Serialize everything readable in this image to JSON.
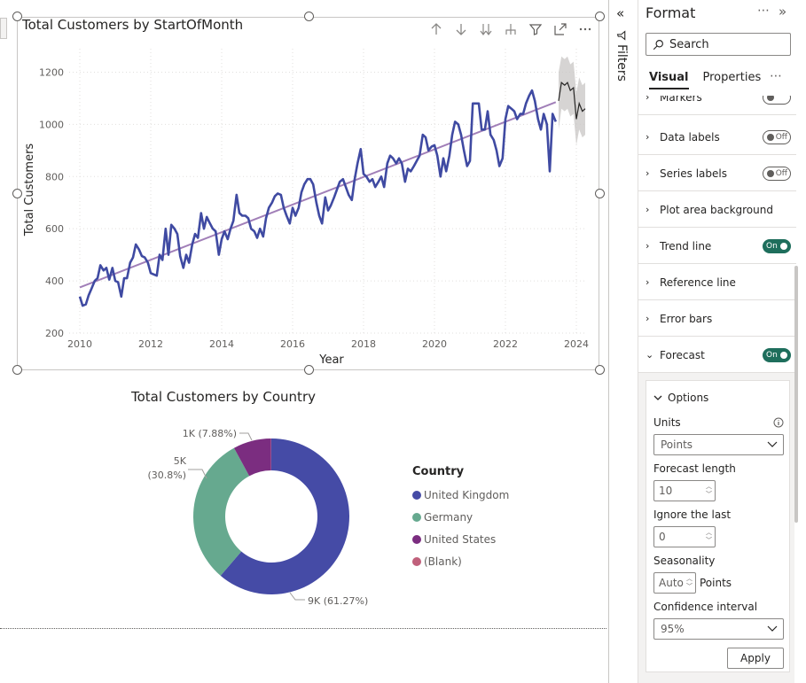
{
  "visual1": {
    "title": "Total Customers by StartOfMonth",
    "toolbar_icons": [
      "arrow-up-icon",
      "arrow-down-icon",
      "double-arrow-down-icon",
      "expand-hierarchy-icon",
      "filter-icon",
      "focus-mode-icon",
      "more-options-icon"
    ]
  },
  "visual2": {
    "title": "Total Customers by Country"
  },
  "chart_data": [
    {
      "type": "line",
      "title": "Total Customers by StartOfMonth",
      "xlabel": "Year",
      "ylabel": "Total Customers",
      "xlim": [
        2009.8,
        2024.3
      ],
      "ylim": [
        200,
        1300
      ],
      "x_ticks": [
        "2010",
        "2012",
        "2014",
        "2016",
        "2018",
        "2020",
        "2022",
        "2024"
      ],
      "y_ticks": [
        "200",
        "400",
        "600",
        "800",
        "1000",
        "1200"
      ],
      "grid": true,
      "series": [
        {
          "color": "#3f4aa2",
          "x": [
            2010.0,
            2010.08,
            2010.17,
            2010.25,
            2010.33,
            2010.42,
            2010.5,
            2010.58,
            2010.67,
            2010.75,
            2010.83,
            2010.92,
            2011.0,
            2011.08,
            2011.17,
            2011.25,
            2011.33,
            2011.42,
            2011.5,
            2011.58,
            2011.67,
            2011.75,
            2011.83,
            2011.92,
            2012.0,
            2012.08,
            2012.17,
            2012.25,
            2012.33,
            2012.42,
            2012.5,
            2012.58,
            2012.67,
            2012.75,
            2012.83,
            2012.92,
            2013.0,
            2013.08,
            2013.17,
            2013.25,
            2013.33,
            2013.42,
            2013.5,
            2013.58,
            2013.67,
            2013.75,
            2013.83,
            2013.92,
            2014.0,
            2014.08,
            2014.17,
            2014.25,
            2014.33,
            2014.42,
            2014.5,
            2014.58,
            2014.67,
            2014.75,
            2014.83,
            2014.92,
            2015.0,
            2015.08,
            2015.17,
            2015.25,
            2015.33,
            2015.42,
            2015.5,
            2015.58,
            2015.67,
            2015.75,
            2015.83,
            2015.92,
            2016.0,
            2016.08,
            2016.17,
            2016.25,
            2016.33,
            2016.42,
            2016.5,
            2016.58,
            2016.67,
            2016.75,
            2016.83,
            2016.92,
            2017.0,
            2017.08,
            2017.17,
            2017.25,
            2017.33,
            2017.42,
            2017.5,
            2017.58,
            2017.67,
            2017.75,
            2017.83,
            2017.92,
            2018.0,
            2018.08,
            2018.17,
            2018.25,
            2018.33,
            2018.42,
            2018.5,
            2018.58,
            2018.67,
            2018.75,
            2018.83,
            2018.92,
            2019.0,
            2019.08,
            2019.17,
            2019.25,
            2019.33,
            2019.42,
            2019.5,
            2019.58,
            2019.67,
            2019.75,
            2019.83,
            2019.92,
            2020.0,
            2020.08,
            2020.17,
            2020.25,
            2020.33,
            2020.42,
            2020.5,
            2020.58,
            2020.67,
            2020.75,
            2020.83,
            2020.92,
            2021.0,
            2021.08,
            2021.17,
            2021.25,
            2021.33,
            2021.42,
            2021.5,
            2021.58,
            2021.67,
            2021.75,
            2021.83,
            2021.92,
            2022.0,
            2022.08,
            2022.17,
            2022.25,
            2022.33,
            2022.42,
            2022.5,
            2022.58,
            2022.67,
            2022.75,
            2022.83,
            2022.92,
            2023.0,
            2023.08,
            2023.17,
            2023.25,
            2023.33,
            2023.42
          ],
          "y": [
            340,
            305,
            310,
            345,
            370,
            400,
            410,
            460,
            440,
            450,
            405,
            450,
            400,
            395,
            340,
            410,
            410,
            470,
            490,
            540,
            520,
            495,
            490,
            470,
            430,
            425,
            420,
            500,
            480,
            600,
            500,
            615,
            600,
            580,
            495,
            450,
            500,
            470,
            540,
            580,
            565,
            660,
            600,
            645,
            620,
            600,
            590,
            500,
            560,
            590,
            560,
            600,
            630,
            730,
            660,
            650,
            650,
            640,
            600,
            590,
            565,
            600,
            570,
            640,
            680,
            700,
            725,
            735,
            730,
            680,
            650,
            620,
            680,
            650,
            680,
            740,
            770,
            790,
            790,
            770,
            700,
            650,
            620,
            720,
            670,
            690,
            720,
            750,
            780,
            790,
            760,
            730,
            710,
            790,
            850,
            905,
            810,
            800,
            780,
            790,
            760,
            780,
            800,
            760,
            850,
            880,
            870,
            850,
            870,
            850,
            780,
            830,
            820,
            840,
            860,
            880,
            960,
            950,
            900,
            915,
            920,
            880,
            800,
            870,
            820,
            880,
            960,
            1010,
            1000,
            960,
            900,
            840,
            860,
            1080,
            1080,
            1080,
            980,
            980,
            1050,
            960,
            940,
            900,
            840,
            870,
            1020,
            1070,
            1060,
            1050,
            1020,
            1040,
            1040,
            1080,
            1110,
            1130,
            1090,
            1020,
            980,
            1040,
            1000,
            820,
            1040,
            1010
          ]
        },
        {
          "name": "Trend line",
          "color": "#a17fb8",
          "x": [
            2010.0,
            2023.42
          ],
          "y": [
            375,
            1085
          ]
        },
        {
          "name": "Forecast",
          "color": "#252423",
          "x": [
            2023.5,
            2023.58,
            2023.67,
            2023.75,
            2023.83,
            2023.92,
            2024.0,
            2024.08,
            2024.17,
            2024.25
          ],
          "y": [
            1090,
            1160,
            1150,
            1160,
            1130,
            1140,
            1020,
            1080,
            1050,
            1060
          ],
          "band_upper": [
            1200,
            1260,
            1250,
            1260,
            1230,
            1240,
            1120,
            1180,
            1150,
            1160
          ],
          "band_lower": [
            980,
            1060,
            1050,
            1060,
            1030,
            1040,
            920,
            980,
            950,
            960
          ]
        }
      ]
    },
    {
      "type": "pie",
      "title": "Total Customers by Country",
      "legend_title": "Country",
      "categories": [
        "United Kingdom",
        "Germany",
        "United States",
        "(Blank)"
      ],
      "values": [
        61.27,
        30.8,
        7.88,
        0.05
      ],
      "colors": [
        "#454ba6",
        "#66a98f",
        "#7b2d80",
        "#c0607b"
      ],
      "data_labels": [
        "9K (61.27%)",
        "5K",
        "(30.8%)",
        "1K (7.88%)"
      ]
    }
  ],
  "filters": {
    "label": "Filters",
    "collapse_icon": "double-chevron-left-icon"
  },
  "format_pane": {
    "title": "Format",
    "search_placeholder": "Search",
    "tabs": [
      "Visual",
      "Properties"
    ],
    "cut_row": "Markers",
    "rows": [
      {
        "label": "Data labels",
        "toggle": "Off"
      },
      {
        "label": "Series labels",
        "toggle": "Off"
      },
      {
        "label": "Plot area background",
        "toggle": ""
      },
      {
        "label": "Trend line",
        "toggle": "On"
      },
      {
        "label": "Reference line",
        "toggle": ""
      },
      {
        "label": "Error bars",
        "toggle": ""
      },
      {
        "label": "Forecast",
        "toggle": "On"
      }
    ],
    "options": {
      "header": "Options",
      "units_label": "Units",
      "units_value": "Points",
      "forecast_length_label": "Forecast length",
      "forecast_length_value": "10",
      "ignore_last_label": "Ignore the last",
      "ignore_last_value": "0",
      "seasonality_label": "Seasonality",
      "seasonality_value": "Auto",
      "seasonality_unit": "Points",
      "confidence_label": "Confidence interval",
      "confidence_value": "95%",
      "apply_label": "Apply"
    }
  }
}
